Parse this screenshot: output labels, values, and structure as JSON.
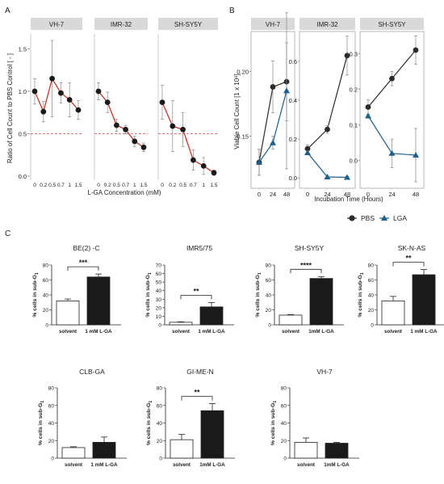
{
  "panel_labels": {
    "A": "A",
    "B": "B",
    "C": "C"
  },
  "chart_data": [
    {
      "id": "A",
      "type": "line",
      "ylabel": "Ratio of Cell Count to PBS Control [ - ]",
      "xlabel": "L-GA Concentration (mM)",
      "ylim": [
        0,
        1.6
      ],
      "yticks": [
        "0.0",
        "0.5",
        "1.0",
        "1.5"
      ],
      "reference_line": {
        "y": 0.5,
        "style": "dashed",
        "color": "#d24a4a"
      },
      "x_tick_labels": [
        "0",
        "0.2",
        "0.5",
        "0.7",
        "1",
        "1.5"
      ],
      "facets": [
        {
          "name": "VH-7",
          "x": [
            0,
            0.2,
            0.5,
            0.7,
            1,
            1.5
          ],
          "y": [
            1.0,
            0.76,
            1.15,
            0.98,
            0.9,
            0.78
          ],
          "err": [
            0.15,
            0.12,
            0.45,
            0.12,
            0.2,
            0.11
          ]
        },
        {
          "name": "IMR-32",
          "x": [
            0,
            0.2,
            0.5,
            0.7,
            1,
            1.5
          ],
          "y": [
            1.0,
            0.87,
            0.6,
            0.55,
            0.41,
            0.34
          ],
          "err": [
            0.1,
            0.12,
            0.07,
            0.05,
            0.06,
            0.05
          ]
        },
        {
          "name": "SH-SY5Y",
          "x": [
            0,
            0.2,
            0.5,
            0.7,
            1,
            1.5
          ],
          "y": [
            0.87,
            0.59,
            0.55,
            0.19,
            0.12,
            0.04
          ],
          "err": [
            0.2,
            0.3,
            0.2,
            0.12,
            0.1,
            0.03
          ]
        }
      ],
      "line_color": "#c0392b",
      "marker_color": "#1a1a1a"
    },
    {
      "id": "B",
      "type": "line",
      "ylabel": "Viable Cell Count [1 x 10⁶]",
      "xlabel": "Incubation Time (Hours)",
      "x_tick_labels": [
        "0",
        "24",
        "48"
      ],
      "facets": [
        {
          "name": "VH-7",
          "ylim": [
            0.115,
            0.23
          ],
          "yticks": [
            "0.15",
            "0.20"
          ],
          "series": [
            {
              "name": "PBS",
              "x": [
                0,
                24,
                48
              ],
              "y": [
                0.13,
                0.188,
                0.192
              ],
              "err": [
                0.01,
                0.02,
                0.03
              ]
            },
            {
              "name": "LGA",
              "x": [
                0,
                24,
                48
              ],
              "y": [
                0.13,
                0.145,
                0.185
              ],
              "err": [
                0.01,
                0.005,
                0.06
              ]
            }
          ]
        },
        {
          "name": "IMR-32",
          "ylim": [
            -0.02,
            0.75
          ],
          "yticks": [
            "0.0",
            "0.2",
            "0.4",
            "0.6"
          ],
          "series": [
            {
              "name": "PBS",
              "x": [
                0,
                24,
                48
              ],
              "y": [
                0.15,
                0.25,
                0.63
              ],
              "err": [
                0.02,
                0.02,
                0.1
              ]
            },
            {
              "name": "LGA",
              "x": [
                0,
                24,
                48
              ],
              "y": [
                0.13,
                0.005,
                0.003
              ],
              "err": [
                0.01,
                0.005,
                0.005
              ]
            }
          ]
        },
        {
          "name": "SH-SY5Y",
          "ylim": [
            -0.06,
            0.36
          ],
          "yticks": [
            "0.0",
            "0.1",
            "0.2",
            "0.3"
          ],
          "series": [
            {
              "name": "PBS",
              "x": [
                0,
                24,
                48
              ],
              "y": [
                0.15,
                0.23,
                0.31
              ],
              "err": [
                0.02,
                0.02,
                0.04
              ]
            },
            {
              "name": "LGA",
              "x": [
                0,
                24,
                48
              ],
              "y": [
                0.125,
                0.02,
                0.015
              ],
              "err": [
                0.005,
                0.04,
                0.075
              ]
            }
          ]
        }
      ],
      "series_styles": [
        {
          "name": "PBS",
          "color": "#2b2b2b",
          "marker": "circle"
        },
        {
          "name": "LGA",
          "color": "#1f5f8b",
          "marker": "triangle"
        }
      ],
      "legend": {
        "placement": "bottom-right",
        "entries": [
          "PBS",
          "LGA"
        ]
      }
    },
    {
      "id": "C",
      "type": "bar",
      "ylabel": "% cells in sub-G",
      "ylabel_sub": "1",
      "ylim": [
        0,
        80
      ],
      "yticks": [
        "0",
        "20",
        "40",
        "60",
        "80"
      ],
      "colors": {
        "solvent": "#ffffff",
        "treated": "#1a1a1a"
      },
      "panels": [
        {
          "title": "BE(2) -C",
          "categories": [
            "solvent",
            "1 mM L-GA"
          ],
          "values": [
            32,
            64
          ],
          "err": [
            2.5,
            4
          ],
          "sig": "***",
          "yticks": [
            "0",
            "20",
            "40",
            "60",
            "80"
          ],
          "ymax": 80
        },
        {
          "title": "IMR5/75",
          "categories": [
            "solvent",
            "1 mM L-GA"
          ],
          "values": [
            3,
            21
          ],
          "err": [
            0.5,
            5
          ],
          "sig": "**",
          "yticks": [
            "0",
            "10",
            "20",
            "30",
            "40",
            "50",
            "60",
            "70"
          ],
          "ymax": 70
        },
        {
          "title": "SH-SY5Y",
          "categories": [
            "solvent",
            "1mM L-GA"
          ],
          "values": [
            13,
            62
          ],
          "err": [
            0.8,
            2.5
          ],
          "sig": "****",
          "yticks": [
            "0",
            "20",
            "40",
            "60",
            "80"
          ],
          "ymax": 80
        },
        {
          "title": "SK-N-AS",
          "categories": [
            "solvent",
            "1 mM L-GA"
          ],
          "values": [
            32,
            67
          ],
          "err": [
            6,
            7
          ],
          "sig": "**",
          "yticks": [
            "0",
            "20",
            "40",
            "60",
            "80"
          ],
          "ymax": 80
        },
        {
          "title": "CLB-GA",
          "categories": [
            "solvent",
            "1 mM L-GA"
          ],
          "values": [
            12,
            18
          ],
          "err": [
            1,
            6
          ],
          "sig": "",
          "yticks": [
            "0",
            "20",
            "40",
            "60",
            "80"
          ],
          "ymax": 80
        },
        {
          "title": "GI-ME-N",
          "categories": [
            "solvent",
            "1mM L-GA"
          ],
          "values": [
            21,
            54
          ],
          "err": [
            6,
            8
          ],
          "sig": "**",
          "yticks": [
            "0",
            "20",
            "40",
            "60",
            "80"
          ],
          "ymax": 80
        },
        {
          "title": "VH-7",
          "categories": [
            "solvent",
            "1mM L-GA"
          ],
          "values": [
            18,
            17
          ],
          "err": [
            5,
            1
          ],
          "sig": "",
          "yticks": [
            "0",
            "20",
            "40",
            "60",
            "80"
          ],
          "ymax": 80
        }
      ]
    }
  ]
}
